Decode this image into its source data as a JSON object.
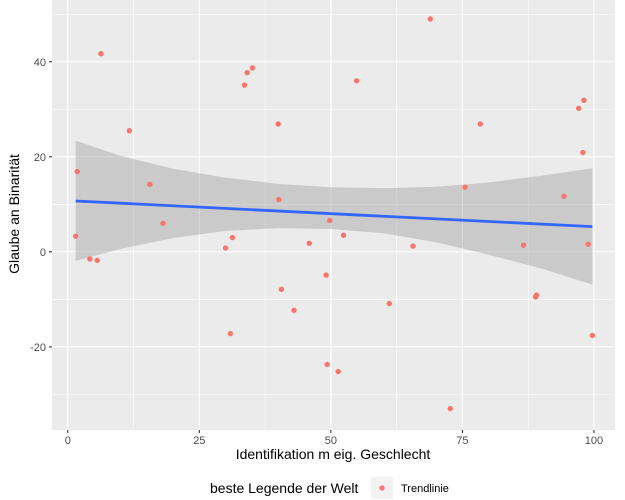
{
  "chart_data": {
    "type": "scatter",
    "xlabel": "Identifikation m eig. Geschlecht",
    "ylabel": "Glaube an Binarität",
    "xlim": [
      -3,
      104
    ],
    "ylim": [
      -37.5,
      53
    ],
    "x_ticks": [
      0,
      25,
      50,
      75,
      100
    ],
    "y_ticks": [
      -20,
      0,
      20,
      40
    ],
    "x_tick_labels": [
      "0",
      "25",
      "50",
      "75",
      "100"
    ],
    "y_tick_labels": [
      "-20",
      "0",
      "20",
      "40"
    ],
    "grid": true,
    "legend": {
      "title": "beste Legende der Welt",
      "entries": [
        "Trendlinie"
      ],
      "position": "bottom"
    },
    "colors": {
      "points": "#F8766D",
      "trend": "#3366FF",
      "ribbon": "#999999",
      "panel": "#EBEBEB",
      "grid": "#FFFFFF"
    },
    "points": [
      {
        "x": 1.5,
        "y": 3.3
      },
      {
        "x": 1.8,
        "y": 16.9
      },
      {
        "x": 4.2,
        "y": -1.5
      },
      {
        "x": 5.6,
        "y": -1.8
      },
      {
        "x": 6.3,
        "y": 41.7
      },
      {
        "x": 11.7,
        "y": 25.5
      },
      {
        "x": 15.6,
        "y": 14.2
      },
      {
        "x": 18.1,
        "y": 6.0
      },
      {
        "x": 30.0,
        "y": 0.8
      },
      {
        "x": 30.9,
        "y": -17.2
      },
      {
        "x": 31.3,
        "y": 3.0
      },
      {
        "x": 33.6,
        "y": 35.1
      },
      {
        "x": 34.1,
        "y": 37.7
      },
      {
        "x": 35.1,
        "y": 38.7
      },
      {
        "x": 40.0,
        "y": 26.9
      },
      {
        "x": 40.1,
        "y": 11.0
      },
      {
        "x": 40.6,
        "y": -7.9
      },
      {
        "x": 43.0,
        "y": -12.3
      },
      {
        "x": 45.9,
        "y": 1.8
      },
      {
        "x": 49.1,
        "y": -4.9
      },
      {
        "x": 49.3,
        "y": -23.7
      },
      {
        "x": 49.8,
        "y": 6.6
      },
      {
        "x": 51.4,
        "y": -25.2
      },
      {
        "x": 52.4,
        "y": 3.5
      },
      {
        "x": 54.9,
        "y": 36.0
      },
      {
        "x": 61.1,
        "y": -10.9
      },
      {
        "x": 65.6,
        "y": 1.2
      },
      {
        "x": 68.9,
        "y": 49.0
      },
      {
        "x": 72.7,
        "y": -33.0
      },
      {
        "x": 75.5,
        "y": 13.6
      },
      {
        "x": 78.4,
        "y": 26.9
      },
      {
        "x": 86.6,
        "y": 1.4
      },
      {
        "x": 88.9,
        "y": -9.5
      },
      {
        "x": 89.1,
        "y": -9.1
      },
      {
        "x": 94.3,
        "y": 11.7
      },
      {
        "x": 97.1,
        "y": 30.2
      },
      {
        "x": 97.9,
        "y": 20.9
      },
      {
        "x": 98.1,
        "y": 31.9
      },
      {
        "x": 98.9,
        "y": 1.6
      },
      {
        "x": 99.7,
        "y": -17.6
      }
    ],
    "trend": {
      "x": [
        1.5,
        99.7
      ],
      "y": [
        10.7,
        5.3
      ]
    },
    "ribbon": {
      "x": [
        1.5,
        10,
        20,
        30,
        40,
        50,
        60,
        70,
        80,
        90,
        99.7
      ],
      "upper": [
        23.4,
        20.2,
        17.5,
        15.6,
        14.3,
        13.6,
        13.4,
        13.7,
        14.6,
        16.0,
        17.6
      ],
      "lower": [
        -1.9,
        0.6,
        2.9,
        4.4,
        5.0,
        4.8,
        3.9,
        2.0,
        -0.6,
        -3.5,
        -6.9
      ]
    }
  }
}
